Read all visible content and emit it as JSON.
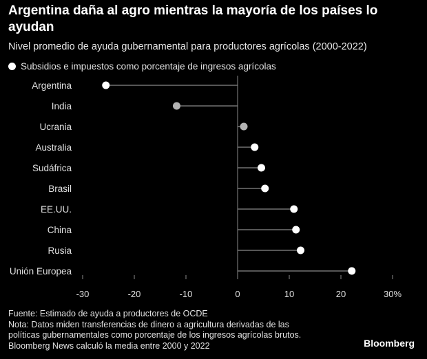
{
  "title": "Argentina daña al agro mientras la mayoría de los países lo ayudan",
  "subtitle": "Nivel promedio de ayuda gubernamental para productores agrícolas (2000-2022)",
  "legend_label": "Subsidios e impuestos como porcentaje de ingresos agrícolas",
  "footer": {
    "source": "Fuente: Estimado de ayuda a productores de OCDE",
    "note1": "Nota: Datos miden transferencias de dinero a agricultura derivadas de las",
    "note2": "políticas gubernamentales como porcentaje de los ingresos agrícolas brutos.",
    "note3": "Bloomberg News calculó la media entre 2000 y 2022"
  },
  "brand": "Bloomberg",
  "colors": {
    "background": "#000000",
    "positive": "#ffffff",
    "negative_gray": "#b3b3b3",
    "line": "#8a8a8a"
  },
  "chart_data": {
    "type": "lollipop",
    "categories": [
      "Argentina",
      "India",
      "Ucrania",
      "Australia",
      "Sudáfrica",
      "Brasil",
      "EE.UU.",
      "China",
      "Rusia",
      "Unión Europea"
    ],
    "values": [
      -25.5,
      -11.8,
      1.2,
      3.3,
      4.6,
      5.3,
      10.9,
      11.3,
      12.2,
      22.1
    ],
    "point_colors": [
      "#ffffff",
      "#b3b3b3",
      "#b3b3b3",
      "#ffffff",
      "#ffffff",
      "#ffffff",
      "#ffffff",
      "#ffffff",
      "#ffffff",
      "#ffffff"
    ],
    "xlim": [
      -30,
      30
    ],
    "xticks": [
      -30,
      -20,
      -10,
      0,
      10,
      20,
      30
    ],
    "xtick_labels": [
      "-30",
      "-20",
      "-10",
      "0",
      "10",
      "20",
      "30%"
    ],
    "xlabel": "",
    "ylabel": ""
  }
}
